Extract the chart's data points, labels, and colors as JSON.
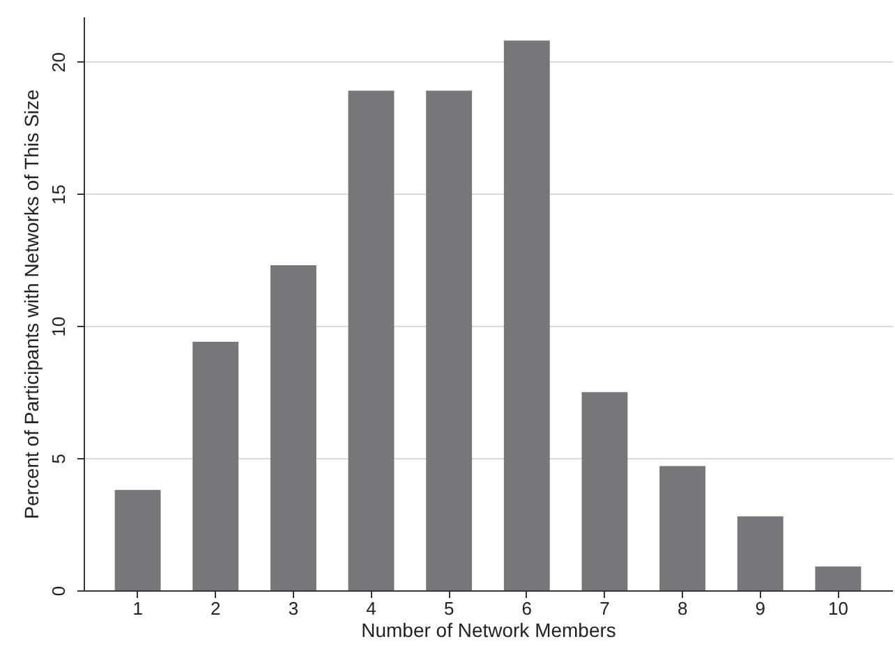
{
  "chart_data": {
    "type": "bar",
    "xlabel": "Number of Network Members",
    "ylabel": "Percent of Participants with Networks of This Size",
    "categories": [
      "1",
      "2",
      "3",
      "4",
      "5",
      "6",
      "7",
      "8",
      "9",
      "10"
    ],
    "values": [
      3.8,
      9.4,
      12.3,
      18.9,
      18.9,
      20.8,
      7.5,
      4.7,
      2.8,
      0.9
    ],
    "color": "#77777b",
    "ylim": [
      0,
      21.7
    ],
    "yticks": [
      0,
      5,
      10,
      15,
      20
    ],
    "grid": "y"
  }
}
